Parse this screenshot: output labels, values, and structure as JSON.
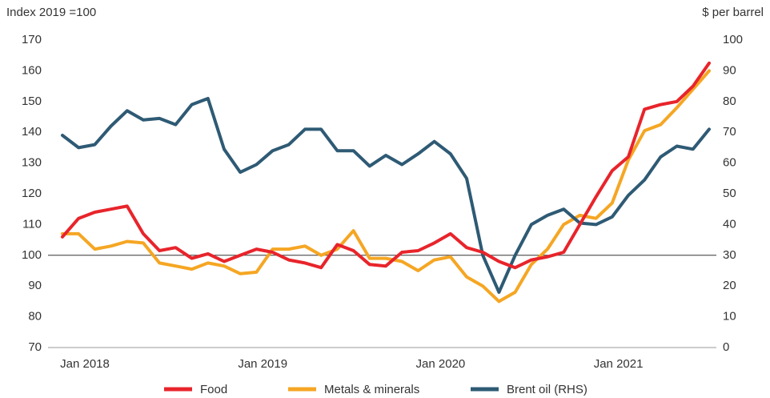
{
  "chart_data": {
    "type": "line",
    "y_label": "Index 2019 =100",
    "y2_label": "$ per barrel",
    "categories": [
      "Jan 2018",
      null,
      null,
      null,
      null,
      null,
      null,
      null,
      null,
      null,
      null,
      "Jan 2019",
      null,
      null,
      null,
      null,
      null,
      null,
      null,
      null,
      null,
      null,
      "Jan 2020",
      null,
      null,
      null,
      null,
      null,
      null,
      null,
      null,
      null,
      null,
      "Jan 2021",
      null,
      null,
      null,
      null,
      null,
      null,
      null
    ],
    "ylim": [
      70,
      170
    ],
    "yticks": [
      70,
      80,
      90,
      100,
      110,
      120,
      130,
      140,
      150,
      160,
      170
    ],
    "y2lim": [
      0,
      100
    ],
    "y2ticks": [
      0,
      10,
      20,
      30,
      40,
      50,
      60,
      70,
      80,
      90,
      100
    ],
    "reference_line": 100,
    "series": [
      {
        "name": "Food",
        "color": "#e8242b",
        "values": [
          106,
          112,
          114,
          115,
          116,
          107,
          101.5,
          102.5,
          99,
          100.5,
          98,
          100,
          102,
          101,
          98.5,
          97.5,
          96,
          103.5,
          101.5,
          97,
          96.5,
          101,
          101.5,
          104,
          107,
          102.5,
          101,
          98,
          96,
          98.5,
          99.5,
          101,
          110,
          119,
          127.5,
          132,
          147.5,
          149,
          150,
          155,
          162.5
        ]
      },
      {
        "name": "Metals & minerals",
        "color": "#f5a623",
        "values": [
          107,
          107,
          102,
          103,
          104.5,
          104,
          97.5,
          96.5,
          95.5,
          97.5,
          96.5,
          94,
          94.5,
          102,
          102,
          103,
          100,
          102,
          108,
          99,
          99,
          98,
          95,
          98.5,
          99.5,
          93,
          90,
          85,
          88,
          97,
          102,
          110,
          113,
          112,
          117,
          131,
          140.5,
          142.5,
          148,
          154,
          160
        ]
      },
      {
        "name": "Brent oil (RHS)",
        "color": "#2e5a74",
        "axis": "y2",
        "values": [
          69,
          65,
          66,
          72,
          77,
          74,
          74.5,
          72.5,
          79,
          81,
          64.5,
          57,
          59.5,
          64,
          66,
          71,
          71,
          64,
          64,
          59,
          62.5,
          59.5,
          63,
          67,
          63,
          55,
          30,
          18,
          30,
          40,
          43,
          45,
          40.5,
          40,
          42.5,
          49.5,
          54.5,
          62,
          65.5,
          64.5,
          71
        ]
      }
    ]
  }
}
